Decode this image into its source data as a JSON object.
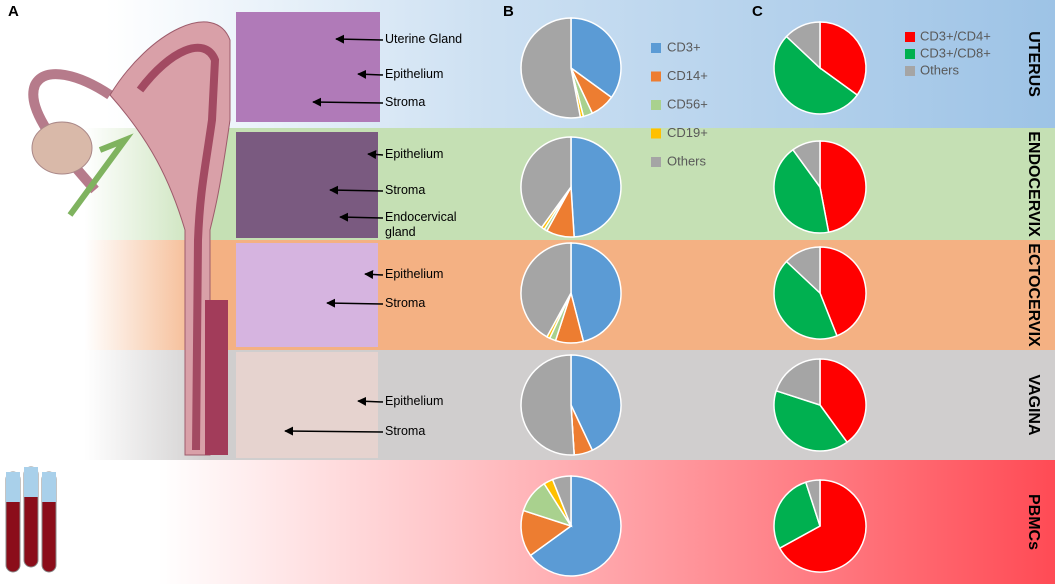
{
  "panels": [
    "A",
    "B",
    "C"
  ],
  "rows": [
    "UTERUS",
    "ENDOCERVIX",
    "ECTOCERVIX",
    "VAGINA",
    "PBMCs"
  ],
  "images": [
    [
      "Uterine Gland",
      "Epithelium",
      "Stroma"
    ],
    [
      "Epithelium",
      "Stroma",
      "Endocervical gland"
    ],
    [
      "Epithelium",
      "Stroma"
    ],
    [
      "Epithelium",
      "Stroma"
    ]
  ],
  "chart_data": [
    {
      "type": "pie",
      "categories": [
        "CD3+",
        "CD14+",
        "CD56+",
        "CD19+",
        "Others"
      ],
      "colors": [
        "#5b9bd5",
        "#ed7d31",
        "#a9d18e",
        "#ffc000",
        "#a5a5a5"
      ],
      "pies": [
        [
          35,
          8,
          3,
          1,
          53
        ],
        [
          49,
          9,
          1,
          1,
          40
        ],
        [
          46,
          9,
          2,
          1,
          42
        ],
        [
          43,
          6,
          0,
          0,
          51
        ],
        [
          65,
          15,
          11,
          3,
          6
        ]
      ]
    },
    {
      "type": "pie",
      "categories": [
        "CD3+/CD4+",
        "CD3+/CD8+",
        "Others"
      ],
      "colors": [
        "#ff0000",
        "#00b050",
        "#a5a5a5"
      ],
      "pies": [
        [
          35,
          52,
          13
        ],
        [
          47,
          43,
          10
        ],
        [
          44,
          43,
          13
        ],
        [
          40,
          40,
          20
        ],
        [
          67,
          28,
          5
        ]
      ]
    }
  ]
}
